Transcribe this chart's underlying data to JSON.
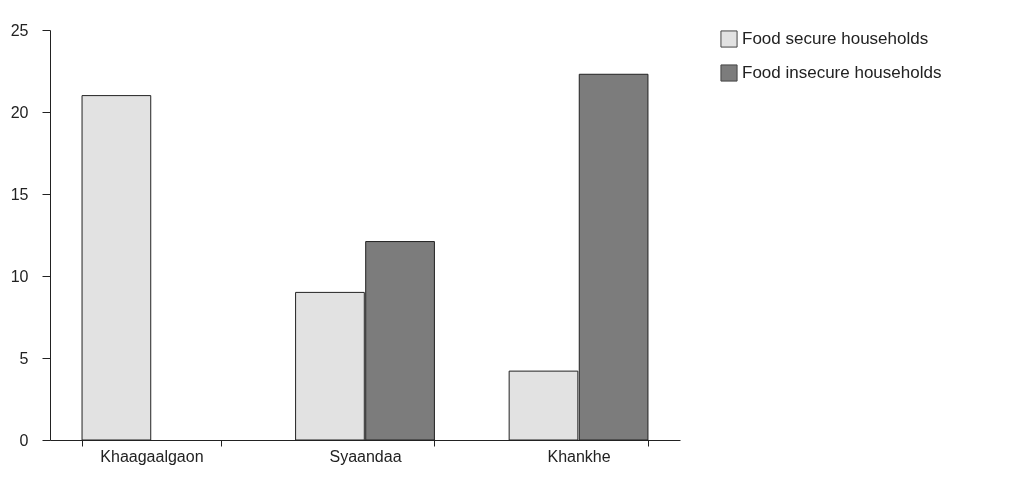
{
  "chart_data": {
    "type": "bar",
    "categories": [
      "Khaagaalgaon",
      "Syaandaa",
      "Khankhe"
    ],
    "series": [
      {
        "name": "Food secure households",
        "color": "#e2e2e2",
        "values": [
          21,
          9,
          4.2
        ]
      },
      {
        "name": "Food insecure households",
        "color": "#7c7c7c",
        "values": [
          null,
          12.1,
          22.3
        ]
      }
    ],
    "ylim": [
      0,
      25
    ],
    "yticks": [
      0,
      5,
      10,
      15,
      20,
      25
    ],
    "grid": false,
    "legend": "right"
  }
}
